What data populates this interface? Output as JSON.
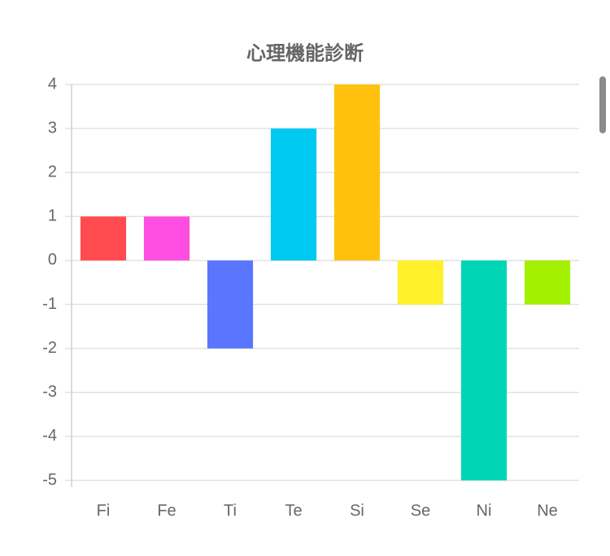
{
  "chart_data": {
    "type": "bar",
    "title": "心理機能診断",
    "categories": [
      "Fi",
      "Fe",
      "Ti",
      "Te",
      "Si",
      "Se",
      "Ni",
      "Ne"
    ],
    "values": [
      1,
      1,
      -2,
      3,
      4,
      -1,
      -5,
      -1
    ],
    "colors": [
      "#ff4b4f",
      "#ff4de2",
      "#5a76ff",
      "#00c9f2",
      "#ffc10d",
      "#fff02a",
      "#00d6b5",
      "#a3f000"
    ],
    "ylim": [
      -5,
      4
    ],
    "yticks": [
      -5,
      -4,
      -3,
      -2,
      -1,
      0,
      1,
      2,
      3,
      4
    ],
    "grid": true
  }
}
